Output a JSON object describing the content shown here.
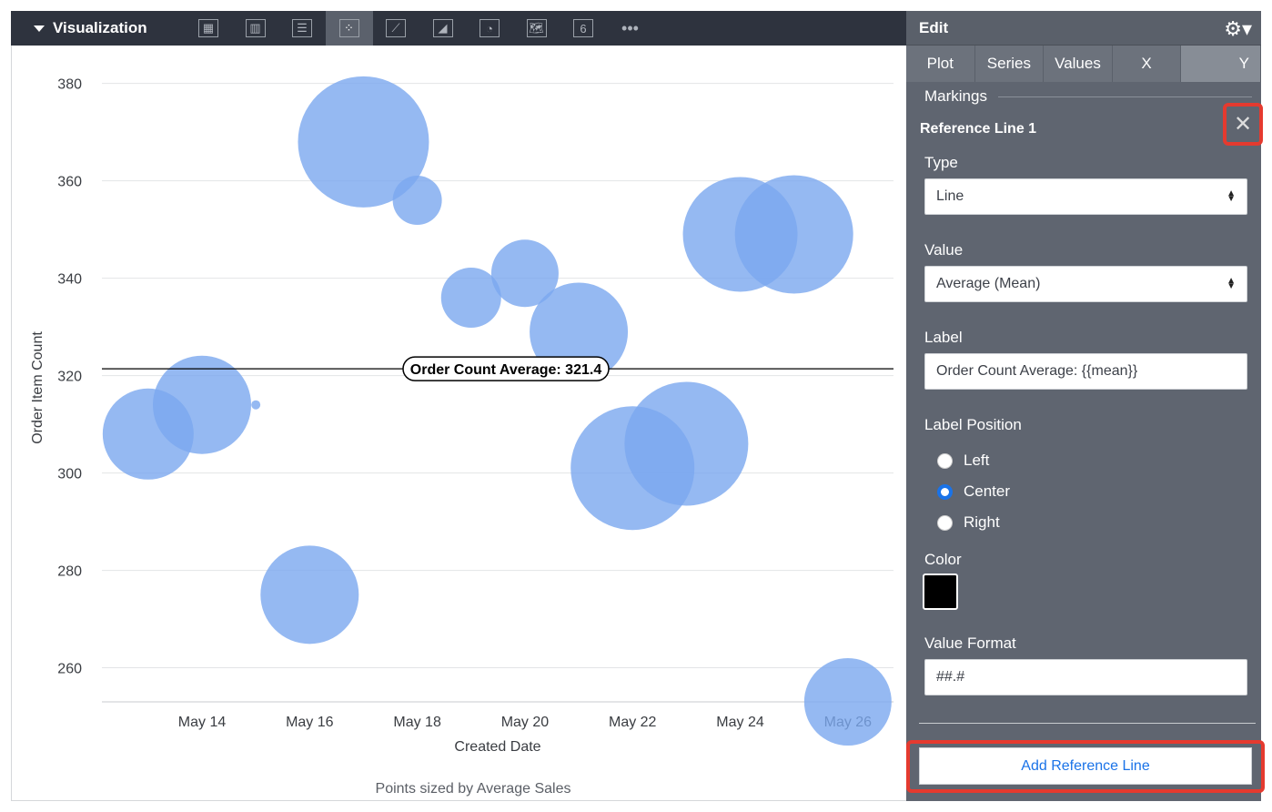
{
  "viz_bar": {
    "title": "Visualization",
    "types": [
      {
        "name": "table-icon",
        "glyph": "▦"
      },
      {
        "name": "column-chart-icon",
        "glyph": "▥"
      },
      {
        "name": "bar-chart-icon",
        "glyph": "☰"
      },
      {
        "name": "scatter-chart-icon",
        "glyph": "⁘",
        "active": true
      },
      {
        "name": "line-chart-icon",
        "glyph": "⟋"
      },
      {
        "name": "area-chart-icon",
        "glyph": "◢"
      },
      {
        "name": "pie-chart-icon",
        "glyph": "◔"
      },
      {
        "name": "map-icon",
        "glyph": "🗺"
      },
      {
        "name": "single-value-icon",
        "glyph": "6"
      },
      {
        "name": "more-icon",
        "glyph": "•••"
      }
    ]
  },
  "chart_data": {
    "type": "scatter",
    "xlabel": "Created Date",
    "ylabel": "Order Item Count",
    "footnote": "Points sized by Average Sales",
    "x_ticks": [
      "May 14",
      "May 16",
      "May 18",
      "May 20",
      "May 22",
      "May 24",
      "May 26"
    ],
    "y_ticks": [
      260,
      280,
      300,
      320,
      340,
      360,
      380
    ],
    "ylim": [
      253,
      383
    ],
    "xlim": [
      "May 12",
      "May 27"
    ],
    "grid": true,
    "bubble_color": "#7ba7ef",
    "points": [
      {
        "x": "May 13",
        "y": 308,
        "size": 50
      },
      {
        "x": "May 14",
        "y": 314,
        "size": 54
      },
      {
        "x": "May 15",
        "y": 314,
        "size": 5
      },
      {
        "x": "May 16",
        "y": 275,
        "size": 54
      },
      {
        "x": "May 17",
        "y": 368,
        "size": 72
      },
      {
        "x": "May 18",
        "y": 356,
        "size": 27
      },
      {
        "x": "May 19",
        "y": 336,
        "size": 33
      },
      {
        "x": "May 20",
        "y": 341,
        "size": 37
      },
      {
        "x": "May 21",
        "y": 329,
        "size": 54
      },
      {
        "x": "May 22",
        "y": 301,
        "size": 68
      },
      {
        "x": "May 23",
        "y": 306,
        "size": 68
      },
      {
        "x": "May 24",
        "y": 349,
        "size": 63
      },
      {
        "x": "May 25",
        "y": 349,
        "size": 65
      },
      {
        "x": "May 26",
        "y": 253,
        "size": 48
      }
    ],
    "reference_line": {
      "value": 321.4,
      "label": "Order Count Average: 321.4",
      "color": "#000000"
    }
  },
  "panel": {
    "title": "Edit",
    "tabs": [
      "Plot",
      "Series",
      "Values",
      "X",
      "Y"
    ],
    "active_tab": "Y",
    "section": "Markings",
    "ref_title": "Reference Line 1",
    "type_label": "Type",
    "type_value": "Line",
    "value_label": "Value",
    "value_value": "Average (Mean)",
    "label_label": "Label",
    "label_value": "Order Count Average: {{mean}}",
    "position_label": "Label Position",
    "positions": [
      "Left",
      "Center",
      "Right"
    ],
    "position_selected": "Center",
    "color_label": "Color",
    "color_value": "#000000",
    "format_label": "Value Format",
    "format_value": "##.#",
    "add_button": "Add Reference Line"
  }
}
